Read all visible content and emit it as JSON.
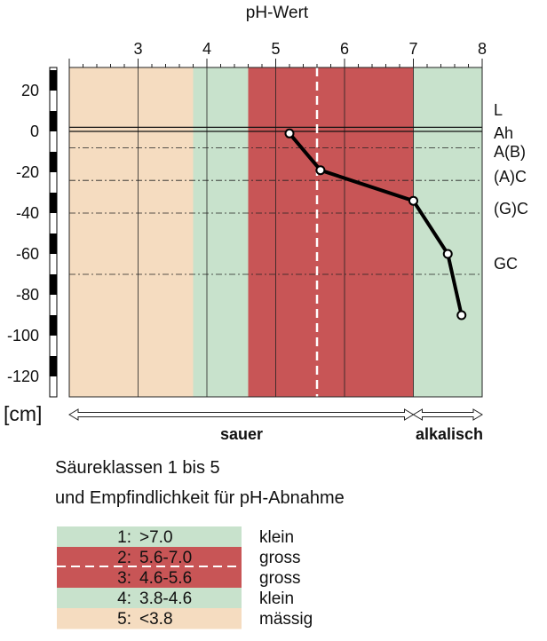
{
  "chart_data": {
    "type": "line",
    "title": "pH-Wert",
    "xlabel": "pH-Wert",
    "ylabel": "[cm]",
    "xlim": [
      2,
      8
    ],
    "ylim": [
      -130,
      30
    ],
    "x_ticks": [
      3,
      4,
      5,
      6,
      7,
      8
    ],
    "y_ticks": [
      20,
      0,
      -20,
      -40,
      -60,
      -80,
      -100,
      -120
    ],
    "grid": true,
    "series": [
      {
        "x": [
          5.2,
          5.65,
          7.0,
          7.5,
          7.7
        ],
        "y": [
          -1,
          -19,
          -34,
          -60,
          -90
        ]
      }
    ],
    "bands": [
      {
        "from": 2.0,
        "to": 3.8,
        "color": "#f5dcc0"
      },
      {
        "from": 3.8,
        "to": 4.6,
        "color": "#c8e2cc"
      },
      {
        "from": 4.6,
        "to": 7.0,
        "color": "#c85556"
      },
      {
        "from": 7.0,
        "to": 8.0,
        "color": "#c8e2cc"
      }
    ],
    "dashed_vline": 5.6,
    "ground_line": 2,
    "horizon_boundaries": [
      -8,
      -24,
      -40,
      -70
    ],
    "horizons": [
      {
        "label": "L",
        "y": 18
      },
      {
        "label": "Ah",
        "y": -8
      },
      {
        "label": "A(B)",
        "y": -29
      },
      {
        "label": "(A)C",
        "y": -57
      },
      {
        "label": "(G)C",
        "y": -93
      },
      {
        "label": "GC",
        "y": -155
      }
    ],
    "arrows": [
      {
        "label": "sauer",
        "from": 2.0,
        "to": 7.0
      },
      {
        "label": "alkalisch",
        "from": 7.0,
        "to": 8.0
      }
    ]
  },
  "caption": {
    "line1": "Säureklassen 1 bis 5",
    "line2": "und Empfindlichkeit für pH-Abnahme"
  },
  "legend": [
    {
      "cls": "1:",
      "range": ">7.0",
      "sens": "klein",
      "color": "#c8e2cc"
    },
    {
      "cls": "2:",
      "range": "5.6-7.0",
      "sens": "gross",
      "color": "#c85556"
    },
    {
      "cls": "3:",
      "range": "4.6-5.6",
      "sens": "gross",
      "color": "#c85556"
    },
    {
      "cls": "4:",
      "range": "3.8-4.6",
      "sens": "klein",
      "color": "#c8e2cc"
    },
    {
      "cls": "5:",
      "range": "<3.8",
      "sens": "mässig",
      "color": "#f5dcc0"
    }
  ]
}
